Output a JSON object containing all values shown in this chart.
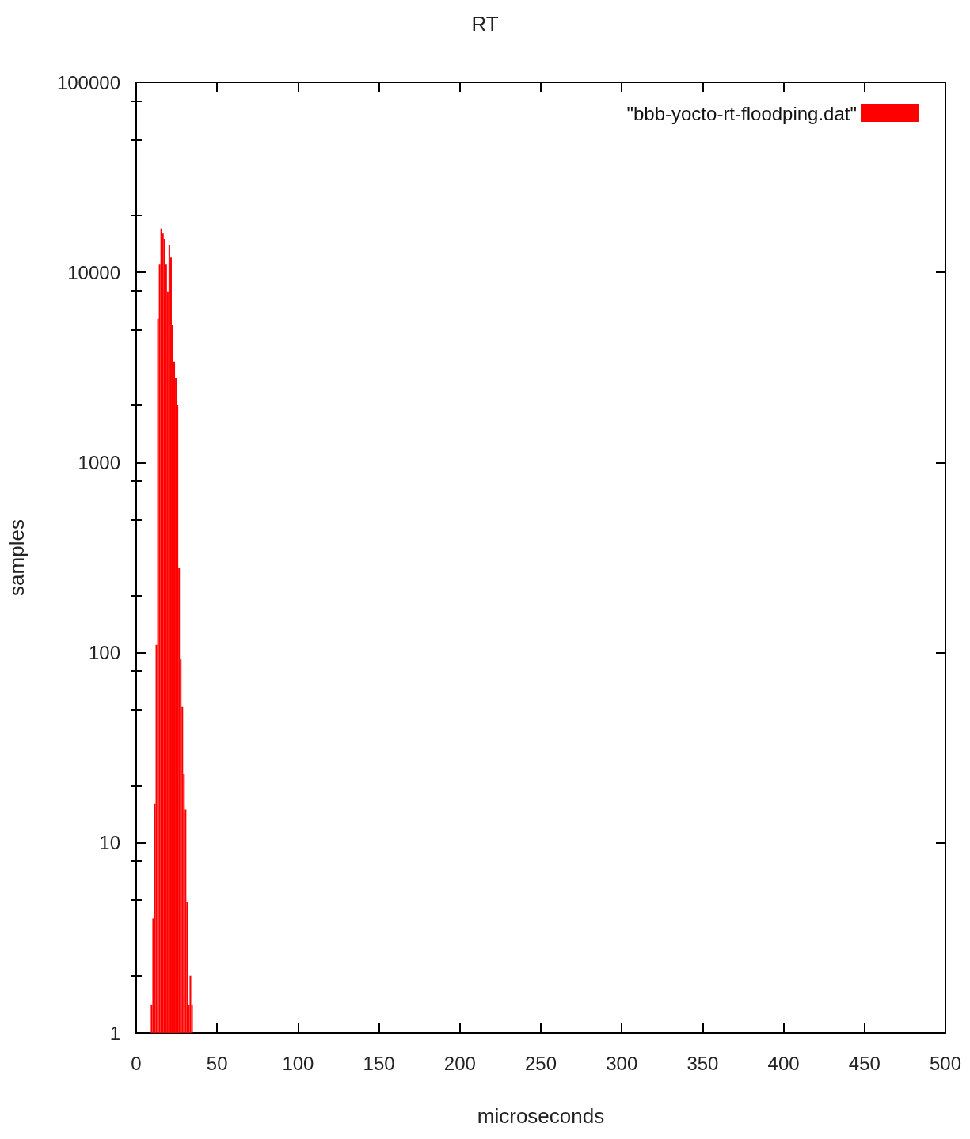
{
  "chart_data": {
    "type": "histogram",
    "title": "RT",
    "xlabel": "microseconds",
    "ylabel": "samples",
    "bins": [
      9,
      10,
      11,
      12,
      13,
      14,
      15,
      16,
      17,
      18,
      19,
      20,
      21,
      22,
      23,
      24,
      25,
      26,
      27,
      28,
      29,
      30,
      31,
      32,
      33,
      34,
      35
    ],
    "series": [
      {
        "name": "\"bbb-yocto-rt-floodping.dat\"",
        "color": "#ff0000",
        "values": [
          1.4,
          4,
          16,
          110,
          5700,
          11000,
          17000,
          16000,
          15000,
          11000,
          7900,
          14000,
          12000,
          5300,
          3400,
          2800,
          2000,
          280,
          92,
          52,
          23,
          15,
          4.9,
          1.4,
          2,
          1.4
        ]
      }
    ],
    "xlim": [
      0,
      500
    ],
    "xticks": [
      0,
      50,
      100,
      150,
      200,
      250,
      300,
      350,
      400,
      450,
      500
    ],
    "ylim": [
      1,
      100000
    ],
    "yticks": [
      1,
      {
        "value": 2,
        "label": null
      },
      {
        "value": 5,
        "label": null
      },
      {
        "value": 8,
        "label": null
      },
      10,
      {
        "value": 20,
        "label": null
      },
      {
        "value": 50,
        "label": null
      },
      {
        "value": 80,
        "label": null
      },
      100,
      {
        "value": 200,
        "label": null
      },
      {
        "value": 500,
        "label": null
      },
      {
        "value": 800,
        "label": null
      },
      1000,
      {
        "value": 2000,
        "label": null
      },
      {
        "value": 5000,
        "label": null
      },
      {
        "value": 8000,
        "label": null
      },
      10000,
      {
        "value": 20000,
        "label": null
      },
      {
        "value": 50000,
        "label": null
      },
      {
        "value": 80000,
        "label": null
      },
      100000
    ],
    "log": "y",
    "legend": "top right"
  }
}
